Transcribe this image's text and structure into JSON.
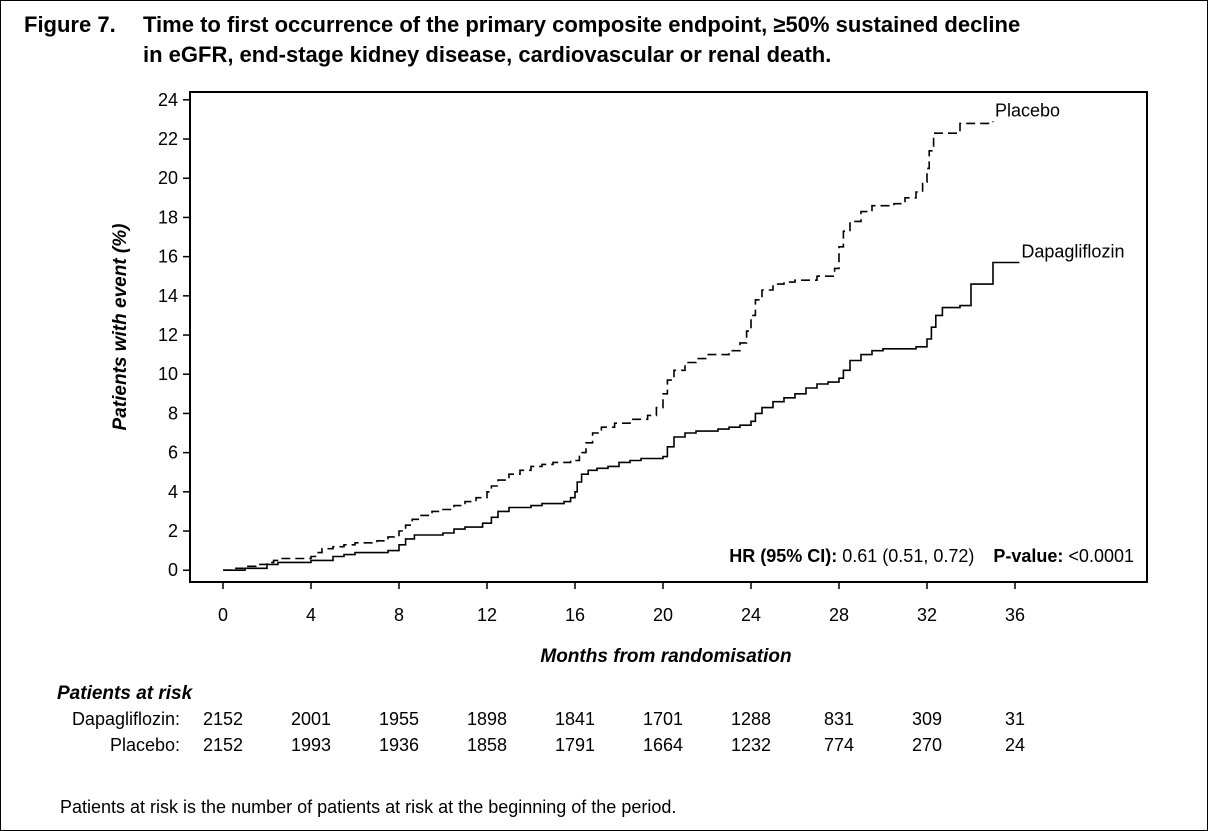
{
  "caption": {
    "label": "Figure 7.",
    "line1": "Time to first occurrence of the primary composite endpoint, ≥50% sustained decline",
    "line2": "in eGFR, end-stage kidney disease, cardiovascular or renal death."
  },
  "chart_data": {
    "type": "line",
    "xlabel": "Months from randomisation",
    "ylabel": "Patients with event (%)",
    "xlim": [
      -1.5,
      42
    ],
    "ylim": [
      -0.6,
      24.4
    ],
    "x_ticks": [
      0,
      4,
      8,
      12,
      16,
      20,
      24,
      28,
      32,
      36
    ],
    "y_ticks": [
      0,
      2,
      4,
      6,
      8,
      10,
      12,
      14,
      16,
      18,
      20,
      22,
      24
    ],
    "grid": false,
    "series": [
      {
        "name": "Placebo",
        "style": "dashed",
        "color": "#000000",
        "points": [
          [
            0,
            0
          ],
          [
            0.5,
            0.1
          ],
          [
            1,
            0.2
          ],
          [
            1.5,
            0.3
          ],
          [
            2,
            0.4
          ],
          [
            2.3,
            0.5
          ],
          [
            2.6,
            0.6
          ],
          [
            4,
            0.7
          ],
          [
            4.2,
            0.9
          ],
          [
            4.5,
            1.1
          ],
          [
            5,
            1.2
          ],
          [
            5.5,
            1.3
          ],
          [
            6,
            1.4
          ],
          [
            7,
            1.5
          ],
          [
            7.5,
            1.7
          ],
          [
            8,
            2.0
          ],
          [
            8.3,
            2.3
          ],
          [
            8.6,
            2.6
          ],
          [
            9,
            2.8
          ],
          [
            9.5,
            3.0
          ],
          [
            10,
            3.1
          ],
          [
            10.5,
            3.3
          ],
          [
            11,
            3.5
          ],
          [
            11.5,
            3.7
          ],
          [
            12,
            4.0
          ],
          [
            12.2,
            4.3
          ],
          [
            12.5,
            4.6
          ],
          [
            13,
            4.9
          ],
          [
            13.5,
            5.1
          ],
          [
            14,
            5.3
          ],
          [
            14.5,
            5.4
          ],
          [
            15,
            5.5
          ],
          [
            15.8,
            5.6
          ],
          [
            16.2,
            6.0
          ],
          [
            16.5,
            6.5
          ],
          [
            16.8,
            7.0
          ],
          [
            17.2,
            7.3
          ],
          [
            17.8,
            7.5
          ],
          [
            18.5,
            7.7
          ],
          [
            19.3,
            7.9
          ],
          [
            19.7,
            8.3
          ],
          [
            20,
            9.0
          ],
          [
            20.2,
            9.7
          ],
          [
            20.5,
            10.2
          ],
          [
            21,
            10.6
          ],
          [
            21.5,
            10.8
          ],
          [
            22,
            11.0
          ],
          [
            23,
            11.2
          ],
          [
            23.5,
            11.6
          ],
          [
            23.8,
            12.2
          ],
          [
            24,
            13.0
          ],
          [
            24.2,
            13.8
          ],
          [
            24.5,
            14.3
          ],
          [
            25,
            14.6
          ],
          [
            25.5,
            14.7
          ],
          [
            26,
            14.8
          ],
          [
            27,
            15.0
          ],
          [
            27.8,
            15.4
          ],
          [
            28,
            16.5
          ],
          [
            28.2,
            17.3
          ],
          [
            28.5,
            17.8
          ],
          [
            29,
            18.3
          ],
          [
            29.5,
            18.6
          ],
          [
            30.5,
            18.7
          ],
          [
            31,
            19.0
          ],
          [
            31.5,
            19.3
          ],
          [
            31.8,
            19.8
          ],
          [
            32,
            20.5
          ],
          [
            32.1,
            21.4
          ],
          [
            32.3,
            22.3
          ],
          [
            33.5,
            22.8
          ],
          [
            35,
            22.9
          ]
        ]
      },
      {
        "name": "Dapagliflozin",
        "style": "solid",
        "color": "#000000",
        "points": [
          [
            0,
            0
          ],
          [
            1,
            0.1
          ],
          [
            2,
            0.3
          ],
          [
            2.5,
            0.4
          ],
          [
            4,
            0.5
          ],
          [
            5,
            0.7
          ],
          [
            5.5,
            0.8
          ],
          [
            6,
            0.9
          ],
          [
            7.5,
            1.0
          ],
          [
            8,
            1.3
          ],
          [
            8.3,
            1.6
          ],
          [
            8.7,
            1.8
          ],
          [
            10,
            1.9
          ],
          [
            10.5,
            2.1
          ],
          [
            11,
            2.2
          ],
          [
            11.8,
            2.4
          ],
          [
            12.2,
            2.7
          ],
          [
            12.5,
            3.0
          ],
          [
            13,
            3.2
          ],
          [
            14,
            3.3
          ],
          [
            14.5,
            3.4
          ],
          [
            15.5,
            3.5
          ],
          [
            15.8,
            3.7
          ],
          [
            16,
            4.0
          ],
          [
            16.1,
            4.5
          ],
          [
            16.3,
            4.9
          ],
          [
            16.6,
            5.1
          ],
          [
            17,
            5.2
          ],
          [
            17.5,
            5.3
          ],
          [
            18,
            5.5
          ],
          [
            18.5,
            5.6
          ],
          [
            19,
            5.7
          ],
          [
            20,
            5.8
          ],
          [
            20.2,
            6.3
          ],
          [
            20.5,
            6.8
          ],
          [
            21,
            7.0
          ],
          [
            21.5,
            7.1
          ],
          [
            22.5,
            7.2
          ],
          [
            23,
            7.3
          ],
          [
            23.5,
            7.4
          ],
          [
            24,
            7.6
          ],
          [
            24.2,
            8.0
          ],
          [
            24.5,
            8.3
          ],
          [
            25,
            8.6
          ],
          [
            25.5,
            8.8
          ],
          [
            26,
            9.0
          ],
          [
            26.5,
            9.3
          ],
          [
            27,
            9.5
          ],
          [
            27.5,
            9.6
          ],
          [
            28,
            9.8
          ],
          [
            28.2,
            10.2
          ],
          [
            28.5,
            10.7
          ],
          [
            29,
            11.0
          ],
          [
            29.5,
            11.2
          ],
          [
            30,
            11.3
          ],
          [
            31.5,
            11.4
          ],
          [
            32,
            11.8
          ],
          [
            32.2,
            12.4
          ],
          [
            32.4,
            13.0
          ],
          [
            32.7,
            13.4
          ],
          [
            33.5,
            13.5
          ],
          [
            34,
            14.6
          ],
          [
            35,
            15.7
          ],
          [
            36.2,
            15.7
          ]
        ]
      }
    ],
    "annotations": {
      "hr_label": "HR (95% CI):",
      "hr_value": "0.61 (0.51, 0.72)",
      "p_label": "P-value:",
      "p_value": "<0.0001"
    },
    "risk_table": {
      "title": "Patients at risk",
      "months": [
        0,
        4,
        8,
        12,
        16,
        20,
        24,
        28,
        32,
        36
      ],
      "rows": [
        {
          "label": "Dapagliflozin:",
          "values": [
            "2152",
            "2001",
            "1955",
            "1898",
            "1841",
            "1701",
            "1288",
            "831",
            "309",
            "31"
          ]
        },
        {
          "label": "Placebo:",
          "values": [
            "2152",
            "1993",
            "1936",
            "1858",
            "1791",
            "1664",
            "1232",
            "774",
            "270",
            "24"
          ]
        }
      ]
    }
  },
  "footnote": "Patients at risk is the number of patients at risk at the beginning of the period."
}
